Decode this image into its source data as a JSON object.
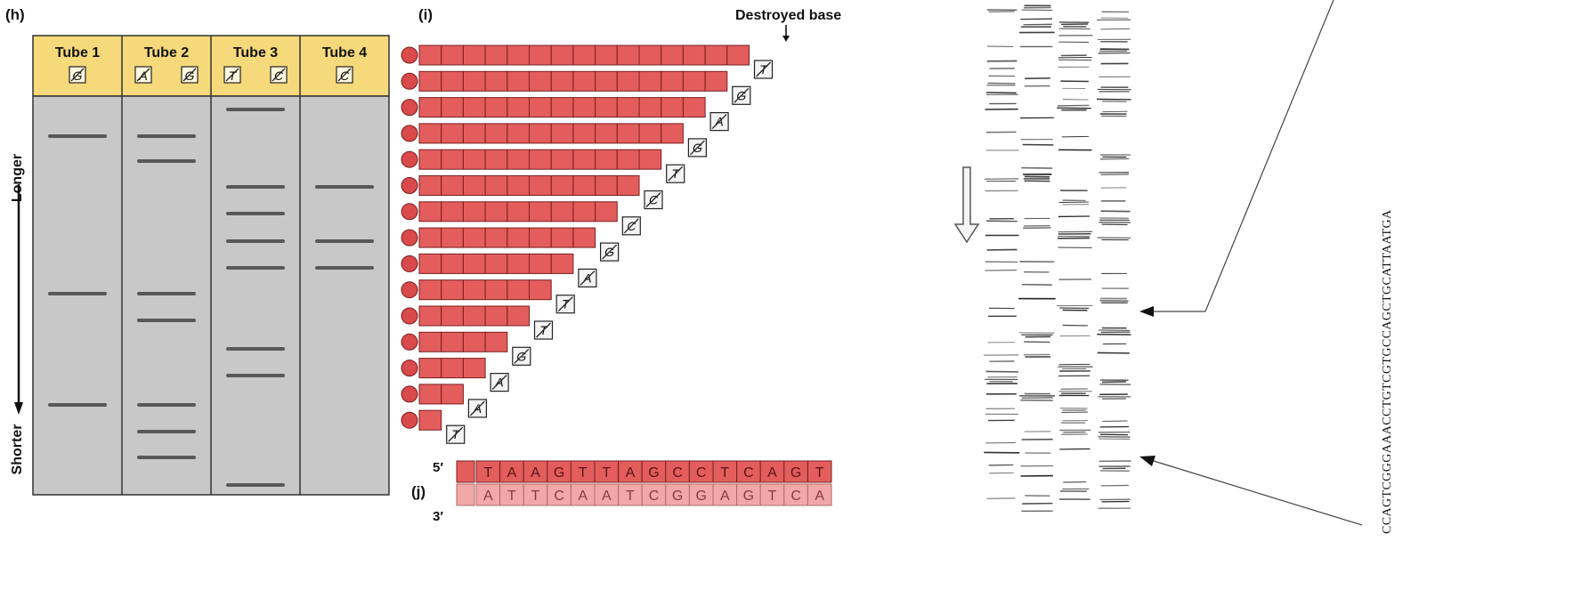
{
  "panel_h": {
    "label": "(h)",
    "tubes": [
      {
        "name": "Tube 1",
        "bases": [
          "G"
        ]
      },
      {
        "name": "Tube 2",
        "bases": [
          "A",
          "G"
        ]
      },
      {
        "name": "Tube 3",
        "bases": [
          "T",
          "C"
        ]
      },
      {
        "name": "Tube 4",
        "bases": [
          "C"
        ]
      }
    ],
    "axis_top": "Longer",
    "axis_bottom": "Shorter",
    "colors": {
      "header": "#f5d97a",
      "gel": "#c8c8c8",
      "border": "#333333",
      "band": "#444444"
    }
  },
  "panel_i": {
    "label": "(i)",
    "destroyed_label": "Destroyed base",
    "fragments": [
      {
        "squares": 15,
        "destroyed": "T"
      },
      {
        "squares": 14,
        "destroyed": "G"
      },
      {
        "squares": 13,
        "destroyed": "A"
      },
      {
        "squares": 12,
        "destroyed": "G"
      },
      {
        "squares": 11,
        "destroyed": "T"
      },
      {
        "squares": 10,
        "destroyed": "C"
      },
      {
        "squares": 9,
        "destroyed": "C"
      },
      {
        "squares": 8,
        "destroyed": "G"
      },
      {
        "squares": 7,
        "destroyed": "A"
      },
      {
        "squares": 6,
        "destroyed": "T"
      },
      {
        "squares": 5,
        "destroyed": "T"
      },
      {
        "squares": 4,
        "destroyed": "G"
      },
      {
        "squares": 3,
        "destroyed": "A"
      },
      {
        "squares": 2,
        "destroyed": "A"
      },
      {
        "squares": 1,
        "destroyed": "T"
      }
    ],
    "colors": {
      "fragment": "#e35d5d",
      "label_dot": "#d94a4a"
    }
  },
  "panel_j": {
    "label": "(j)",
    "five_prime": "5′",
    "three_prime": "3′",
    "top_strand": [
      "T",
      "A",
      "A",
      "G",
      "T",
      "T",
      "A",
      "G",
      "C",
      "C",
      "T",
      "C",
      "A",
      "G",
      "T"
    ],
    "bottom_strand": [
      "A",
      "T",
      "T",
      "C",
      "A",
      "A",
      "T",
      "C",
      "G",
      "G",
      "A",
      "G",
      "T",
      "C",
      "A"
    ],
    "colors": {
      "top": "#e35d5d",
      "bottom": "#f3a8a8"
    }
  },
  "gel_photo": {
    "sequence_text": "CCAGTCGGGAAACCTGTCGTGCCAGCTGCATTAATGA"
  }
}
